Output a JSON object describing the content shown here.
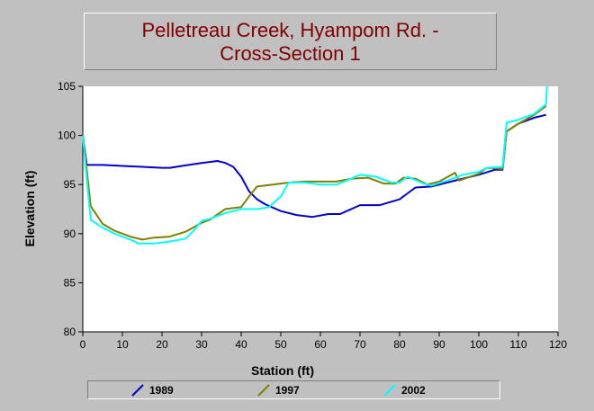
{
  "chart_data": {
    "type": "line",
    "title_lines": [
      "Pelletreau Creek, Hyampom Rd. -",
      "Cross-Section 1"
    ],
    "xlabel": "Station (ft)",
    "ylabel": "Elevation (ft)",
    "xlim": [
      0,
      120
    ],
    "ylim": [
      80,
      105
    ],
    "xticks": [
      "0",
      "10",
      "20",
      "30",
      "40",
      "50",
      "60",
      "70",
      "80",
      "90",
      "100",
      "110",
      "120"
    ],
    "yticks": [
      "80",
      "85",
      "90",
      "95",
      "100",
      "105"
    ],
    "grid": false,
    "legend_position": "bottom",
    "series": [
      {
        "name": "1989",
        "color": "#0000cc",
        "points": [
          [
            0,
            100
          ],
          [
            1,
            97
          ],
          [
            5,
            97
          ],
          [
            10,
            96.9
          ],
          [
            15,
            96.8
          ],
          [
            20,
            96.7
          ],
          [
            22,
            96.7
          ],
          [
            25,
            96.9
          ],
          [
            30,
            97.2
          ],
          [
            34,
            97.4
          ],
          [
            36,
            97.2
          ],
          [
            38,
            96.8
          ],
          [
            40,
            95.8
          ],
          [
            42,
            94.3
          ],
          [
            44,
            93.5
          ],
          [
            46,
            93
          ],
          [
            50,
            92.3
          ],
          [
            54,
            91.9
          ],
          [
            58,
            91.7
          ],
          [
            62,
            92
          ],
          [
            65,
            92
          ],
          [
            70,
            92.9
          ],
          [
            75,
            92.9
          ],
          [
            80,
            93.5
          ],
          [
            84,
            94.7
          ],
          [
            88,
            94.8
          ],
          [
            92,
            95.2
          ],
          [
            96,
            95.6
          ],
          [
            100,
            96
          ],
          [
            104,
            96.5
          ],
          [
            106,
            96.5
          ],
          [
            107,
            100.4
          ],
          [
            110,
            101.2
          ],
          [
            114,
            101.8
          ],
          [
            117,
            102.1
          ]
        ]
      },
      {
        "name": "1997",
        "color": "#808000",
        "points": [
          [
            0,
            100
          ],
          [
            1,
            96.5
          ],
          [
            2,
            92.8
          ],
          [
            5,
            91
          ],
          [
            8,
            90.3
          ],
          [
            12,
            89.7
          ],
          [
            15,
            89.4
          ],
          [
            18,
            89.6
          ],
          [
            22,
            89.7
          ],
          [
            26,
            90.2
          ],
          [
            30,
            91.1
          ],
          [
            32,
            91.4
          ],
          [
            36,
            92.5
          ],
          [
            40,
            92.7
          ],
          [
            42,
            93.8
          ],
          [
            44,
            94.8
          ],
          [
            48,
            95
          ],
          [
            52,
            95.2
          ],
          [
            56,
            95.3
          ],
          [
            60,
            95.3
          ],
          [
            64,
            95.3
          ],
          [
            68,
            95.6
          ],
          [
            72,
            95.7
          ],
          [
            76,
            95.1
          ],
          [
            79,
            95.1
          ],
          [
            81,
            95.7
          ],
          [
            84,
            95.6
          ],
          [
            87,
            95
          ],
          [
            90,
            95.3
          ],
          [
            94,
            96.2
          ],
          [
            95,
            95.4
          ],
          [
            100,
            96.1
          ],
          [
            102,
            96.7
          ],
          [
            106,
            96.6
          ],
          [
            107,
            100.4
          ],
          [
            110,
            101.2
          ],
          [
            114,
            102.1
          ],
          [
            117,
            103
          ]
        ]
      },
      {
        "name": "2002",
        "color": "#00ffff",
        "points": [
          [
            0,
            100
          ],
          [
            1,
            95.5
          ],
          [
            2,
            91.4
          ],
          [
            5,
            90.6
          ],
          [
            8,
            90
          ],
          [
            12,
            89.4
          ],
          [
            14,
            89
          ],
          [
            18,
            89
          ],
          [
            22,
            89.2
          ],
          [
            26,
            89.5
          ],
          [
            28,
            90.3
          ],
          [
            30,
            91.3
          ],
          [
            32,
            91.5
          ],
          [
            36,
            92.1
          ],
          [
            40,
            92.5
          ],
          [
            44,
            92.5
          ],
          [
            47,
            92.7
          ],
          [
            50,
            93.8
          ],
          [
            52,
            95.2
          ],
          [
            56,
            95.2
          ],
          [
            60,
            95
          ],
          [
            64,
            95
          ],
          [
            66,
            95.3
          ],
          [
            70,
            96
          ],
          [
            74,
            95.8
          ],
          [
            78,
            95.2
          ],
          [
            80,
            95.2
          ],
          [
            82,
            95.8
          ],
          [
            86,
            95.1
          ],
          [
            88,
            94.9
          ],
          [
            92,
            95.4
          ],
          [
            96,
            96
          ],
          [
            100,
            96.3
          ],
          [
            102,
            96.7
          ],
          [
            106,
            96.8
          ],
          [
            107,
            101.3
          ],
          [
            110,
            101.6
          ],
          [
            114,
            102.2
          ],
          [
            117,
            103.2
          ],
          [
            117.2,
            105
          ]
        ]
      }
    ]
  }
}
